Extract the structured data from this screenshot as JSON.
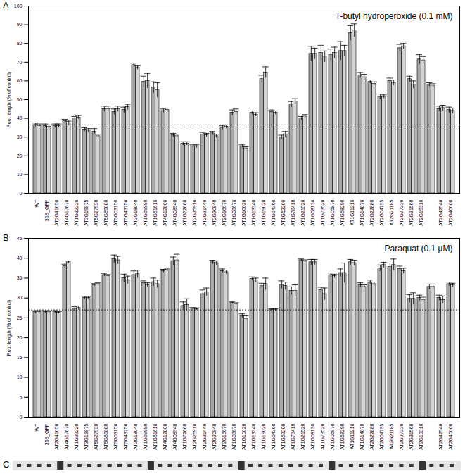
{
  "chart_data": [
    {
      "type": "bar",
      "panel_label": "A",
      "annotation": "T-butyl hydroperoxide (0.1 mM)",
      "y_label": "Root length (% of control)",
      "categories": [
        "WT",
        "35S_GFP",
        "AT2G41650",
        "AT4G17670",
        "AT1G32220",
        "AT3G19875",
        "AT5G27930",
        "AT5G59880",
        "AT5G03150",
        "AT5G43750",
        "AT3G18040",
        "AT1G69980",
        "AT1G51610",
        "AT4G12800",
        "AT4G08940",
        "AT1G72660",
        "AT2G25910",
        "AT2G31440",
        "AT2G20840",
        "AT2G16670",
        "AT1G08670",
        "AT1G10020",
        "AT1G13340",
        "AT1G19020",
        "AT1G64360",
        "AT1G52200",
        "AT1G78410",
        "AT1G21520",
        "AT1G08130",
        "AT1G73520",
        "AT1G05870",
        "AT1G58290",
        "AT1G11210",
        "AT1G14870",
        "AT2G22880",
        "AT2G04795",
        "AT2G21185",
        "AT2G27330",
        "AT2G31560",
        "AT2G19310",
        null,
        "AT2G42540",
        "AT2G40000"
      ],
      "series": [
        {
          "color": "#a8a8a8",
          "values": [
            36.5,
            36,
            36,
            38.5,
            40,
            34,
            33,
            45,
            43.5,
            44.5,
            68.5,
            59.5,
            56.5,
            44,
            31,
            26.5,
            25,
            31.5,
            32,
            35,
            43,
            25,
            43,
            61,
            43.5,
            30,
            47.5,
            40,
            74.5,
            75,
            74,
            76,
            85.5,
            63,
            59.5,
            51.5,
            60,
            77.5,
            61,
            71.5,
            58,
            45,
            44.5
          ],
          "errors": [
            1,
            1,
            1,
            1,
            1,
            1,
            1.5,
            1.5,
            1.5,
            1.5,
            1,
            3,
            3,
            1,
            1,
            1,
            0.8,
            1,
            1,
            1,
            1.5,
            0.8,
            1,
            2,
            1,
            1,
            1.5,
            1,
            4,
            4,
            3,
            5,
            4,
            1.5,
            1,
            1.5,
            1.5,
            2,
            1.5,
            2.5,
            1,
            1.5,
            1.5
          ]
        },
        {
          "color": "#d4d4d4",
          "values": [
            36,
            35.5,
            36,
            37.5,
            40.5,
            33.5,
            30.5,
            45,
            45,
            46,
            67,
            60,
            55,
            44.5,
            30.5,
            26.5,
            25,
            31,
            30.5,
            35.5,
            43.5,
            24,
            42,
            64.5,
            43,
            31.5,
            49,
            41,
            74.5,
            73,
            75,
            76,
            87,
            62,
            58.5,
            51.5,
            59,
            78.5,
            58,
            71,
            57.5,
            45.5,
            44
          ],
          "errors": [
            1,
            1,
            1,
            1,
            1,
            1,
            1,
            1.5,
            1.5,
            1.5,
            1,
            4,
            4,
            1,
            1,
            1,
            0.8,
            1,
            1,
            1,
            1.5,
            0.8,
            1,
            3,
            1,
            1.5,
            1.5,
            1,
            3,
            3,
            3,
            3,
            3.5,
            1.5,
            1,
            1,
            1.5,
            1.5,
            2,
            2,
            1,
            1.5,
            1.5
          ]
        }
      ],
      "reference_line": 36.5,
      "ylim": [
        0,
        100
      ],
      "yticks": [
        0,
        10,
        20,
        30,
        40,
        50,
        60,
        70,
        80,
        90,
        100
      ],
      "grid": false
    },
    {
      "type": "bar",
      "panel_label": "B",
      "annotation": "Paraquat (0.1 µM)",
      "y_label": "Root length (% of control)",
      "categories": [
        "WT",
        "35S_GFP",
        "AT2G41650",
        "AT4G17670",
        "AT1G32220",
        "AT3G19875",
        "AT5G27930",
        "AT5G59880",
        "AT5G03150",
        "AT5G43750",
        "AT3G18040",
        "AT1G69980",
        "AT1G51610",
        "AT4G12800",
        "AT4G08940",
        "AT1G72660",
        "AT2G25910",
        "AT2G31440",
        "AT2G20840",
        "AT2G16670",
        "AT1G08670",
        "AT1G10020",
        "AT1G13340",
        "AT1G19020",
        "AT1G64360",
        "AT1G52200",
        "AT1G78410",
        "AT1G21520",
        "AT1G08130",
        "AT1G73520",
        "AT1G05870",
        "AT1G58290",
        "AT1G11210",
        "AT1G14870",
        "AT2G22880",
        "AT2G04795",
        "AT2G21185",
        "AT2G27330",
        "AT2G31560",
        "AT2G19310",
        null,
        "AT2G42540",
        "AT2G40000"
      ],
      "series": [
        {
          "color": "#a8a8a8",
          "values": [
            26.5,
            26.5,
            26.5,
            38,
            27.3,
            30,
            33.3,
            35.8,
            39.8,
            35,
            35.8,
            33.8,
            34,
            36.8,
            39.3,
            28,
            27.3,
            31,
            39,
            36.8,
            28.8,
            25.5,
            34.8,
            33,
            27,
            33.3,
            31.8,
            39.5,
            39,
            32,
            35.8,
            36.3,
            39,
            33.3,
            34,
            37.5,
            37.8,
            37.3,
            29.8,
            30,
            32.8,
            30,
            33.5
          ],
          "errors": [
            0.3,
            0.3,
            0.3,
            0.5,
            0.5,
            0.4,
            0.3,
            0.4,
            1,
            1,
            1,
            0.5,
            1,
            0.4,
            1,
            1,
            0.3,
            1,
            0.5,
            0.5,
            0.3,
            0.5,
            0.5,
            0.7,
            0.3,
            1,
            1,
            0.3,
            0.7,
            0.7,
            0.5,
            1,
            0.7,
            0.5,
            0.5,
            0.8,
            1,
            0.7,
            1,
            0.7,
            0.7,
            0.7,
            0.5
          ]
        },
        {
          "color": "#d4d4d4",
          "values": [
            26.5,
            26.5,
            26.3,
            39,
            27.5,
            30,
            33.5,
            35.5,
            39.5,
            34.5,
            36,
            33.3,
            33.5,
            37,
            39.5,
            28.3,
            27.2,
            31.5,
            38.8,
            36.5,
            28.5,
            24.8,
            34.5,
            33.5,
            27,
            33,
            31.8,
            39.3,
            39,
            31,
            35.5,
            36.3,
            38.8,
            32.8,
            33.5,
            38.3,
            38.3,
            36.8,
            29.8,
            29.5,
            32.8,
            29.5,
            33.2
          ],
          "errors": [
            0.3,
            0.3,
            0.3,
            0.3,
            0.5,
            0.4,
            0.3,
            0.4,
            1,
            1,
            1,
            0.5,
            1,
            0.3,
            1.5,
            1.5,
            0.3,
            1,
            0.5,
            0.5,
            0.3,
            0.7,
            0.5,
            1.5,
            0.3,
            1,
            1.5,
            0.3,
            0.7,
            1.5,
            0.5,
            2.5,
            0.7,
            0.5,
            0.5,
            0.7,
            1.5,
            0.7,
            1.5,
            0.7,
            0.7,
            1,
            0.5
          ]
        }
      ],
      "reference_line": 27,
      "ylim": [
        0,
        45
      ],
      "yticks": [
        0,
        5,
        10,
        15,
        20,
        25,
        30,
        35,
        40,
        45
      ],
      "grid": false
    },
    {
      "type": "image",
      "panel_label": "C"
    }
  ]
}
